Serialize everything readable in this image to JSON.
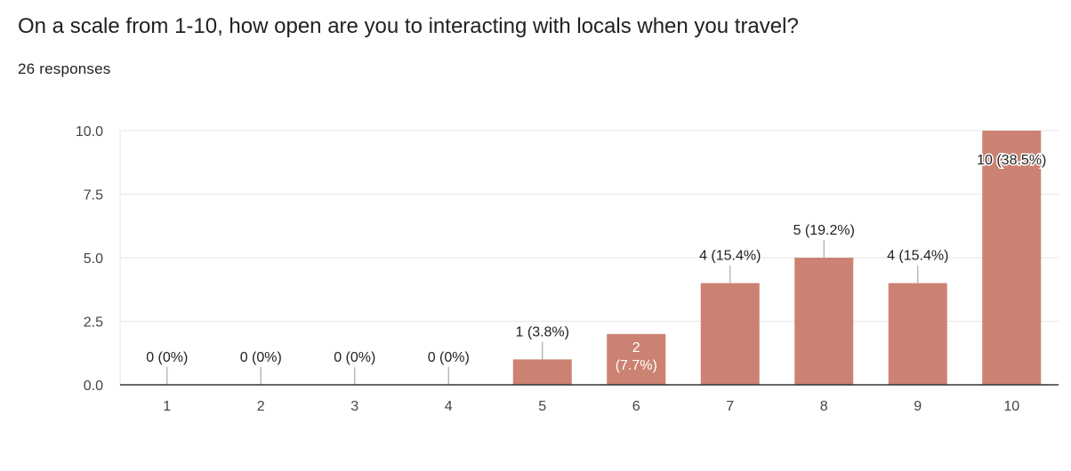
{
  "header": {
    "question": "On a scale from 1-10, how open are you to interacting with locals when you travel?",
    "responses": "26 responses"
  },
  "colors": {
    "bar": "#cc8272",
    "grid": "#e6e6e6",
    "axis": "#333333",
    "leader": "#aaaaaa"
  },
  "chart_data": {
    "type": "bar",
    "title": "On a scale from 1-10, how open are you to interacting with locals when you travel?",
    "categories": [
      "1",
      "2",
      "3",
      "4",
      "5",
      "6",
      "7",
      "8",
      "9",
      "10"
    ],
    "values": [
      0,
      0,
      0,
      0,
      1,
      2,
      4,
      5,
      4,
      10
    ],
    "data_labels": [
      "0 (0%)",
      "0 (0%)",
      "0 (0%)",
      "0 (0%)",
      "1 (3.8%)",
      "2 (7.7%)",
      "4 (15.4%)",
      "5 (19.2%)",
      "4 (15.4%)",
      "10 (38.5%)"
    ],
    "y_ticks": [
      "0.0",
      "2.5",
      "5.0",
      "7.5",
      "10.0"
    ],
    "ylim": [
      0,
      10
    ],
    "grid": true,
    "legend": "none"
  }
}
